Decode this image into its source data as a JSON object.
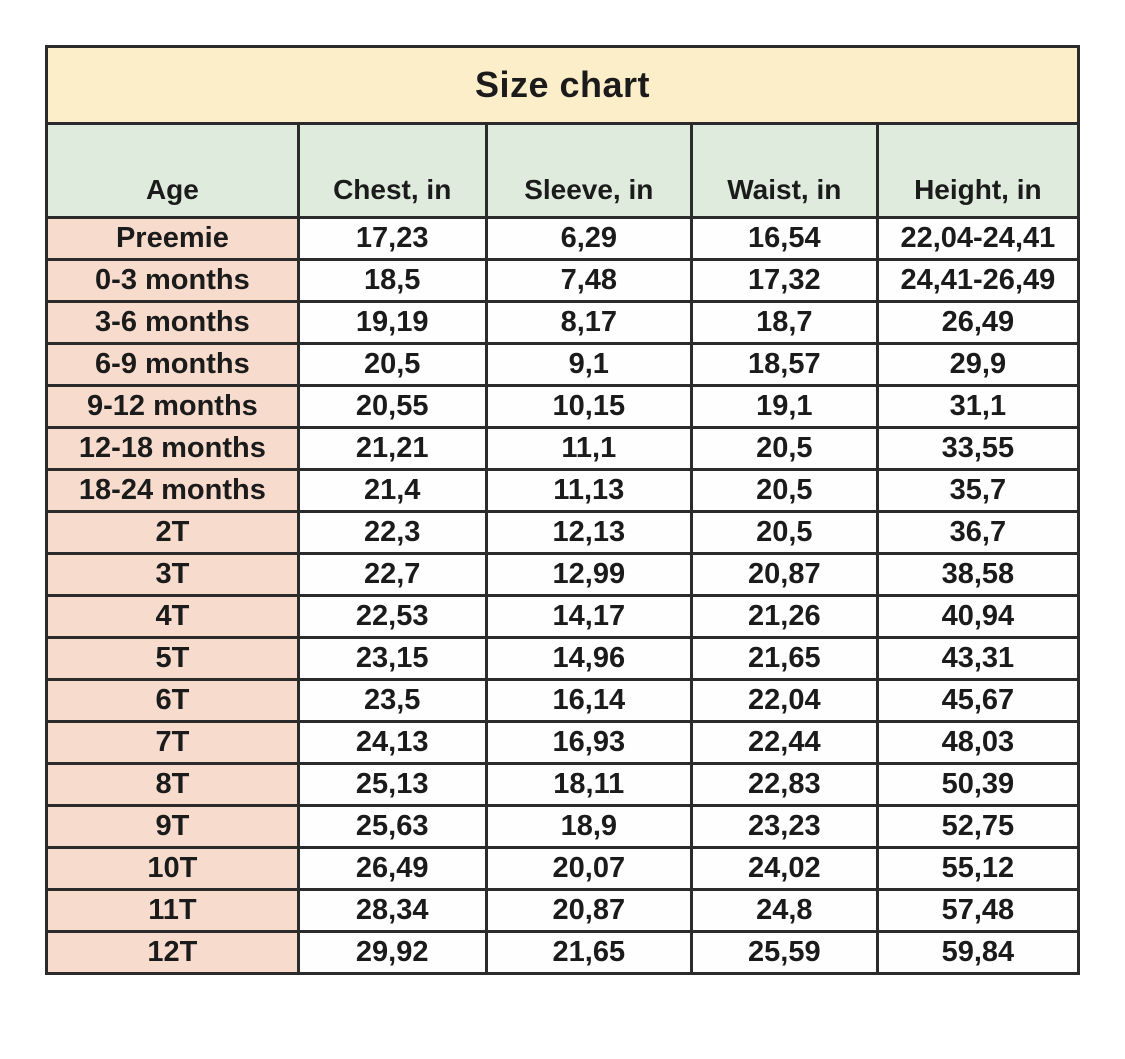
{
  "table": {
    "title": "Size chart",
    "columns": [
      "Age",
      "Chest, in",
      "Sleeve, in",
      "Waist, in",
      "Height, in"
    ],
    "rows": [
      [
        "Preemie",
        "17,23",
        "6,29",
        "16,54",
        "22,04-24,41"
      ],
      [
        "0-3 months",
        "18,5",
        "7,48",
        "17,32",
        "24,41-26,49"
      ],
      [
        "3-6 months",
        "19,19",
        "8,17",
        "18,7",
        "26,49"
      ],
      [
        "6-9 months",
        "20,5",
        "9,1",
        "18,57",
        "29,9"
      ],
      [
        "9-12 months",
        "20,55",
        "10,15",
        "19,1",
        "31,1"
      ],
      [
        "12-18 months",
        "21,21",
        "11,1",
        "20,5",
        "33,55"
      ],
      [
        "18-24 months",
        "21,4",
        "11,13",
        "20,5",
        "35,7"
      ],
      [
        "2T",
        "22,3",
        "12,13",
        "20,5",
        "36,7"
      ],
      [
        "3T",
        "22,7",
        "12,99",
        "20,87",
        "38,58"
      ],
      [
        "4T",
        "22,53",
        "14,17",
        "21,26",
        "40,94"
      ],
      [
        "5T",
        "23,15",
        "14,96",
        "21,65",
        "43,31"
      ],
      [
        "6T",
        "23,5",
        "16,14",
        "22,04",
        "45,67"
      ],
      [
        "7T",
        "24,13",
        "16,93",
        "22,44",
        "48,03"
      ],
      [
        "8T",
        "25,13",
        "18,11",
        "22,83",
        "50,39"
      ],
      [
        "9T",
        "25,63",
        "18,9",
        "23,23",
        "52,75"
      ],
      [
        "10T",
        "26,49",
        "20,07",
        "24,02",
        "55,12"
      ],
      [
        "11T",
        "28,34",
        "20,87",
        "24,8",
        "57,48"
      ],
      [
        "12T",
        "29,92",
        "21,65",
        "25,59",
        "59,84"
      ]
    ],
    "colors": {
      "title_bg": "#fbeec9",
      "header_bg": "#dfebdd",
      "age_column_bg": "#f7dccd",
      "cell_bg": "#fefefe",
      "border": "#2b2b2b",
      "text": "#1b1b1b"
    }
  },
  "chart_data": {
    "type": "table",
    "title": "Size chart",
    "columns": [
      "Age",
      "Chest, in",
      "Sleeve, in",
      "Waist, in",
      "Height, in"
    ],
    "decimal_separator": ",",
    "rows": [
      {
        "age": "Preemie",
        "chest_in": 17.23,
        "sleeve_in": 6.29,
        "waist_in": 16.54,
        "height_in": "22,04-24,41"
      },
      {
        "age": "0-3 months",
        "chest_in": 18.5,
        "sleeve_in": 7.48,
        "waist_in": 17.32,
        "height_in": "24,41-26,49"
      },
      {
        "age": "3-6 months",
        "chest_in": 19.19,
        "sleeve_in": 8.17,
        "waist_in": 18.7,
        "height_in": 26.49
      },
      {
        "age": "6-9 months",
        "chest_in": 20.5,
        "sleeve_in": 9.1,
        "waist_in": 18.57,
        "height_in": 29.9
      },
      {
        "age": "9-12 months",
        "chest_in": 20.55,
        "sleeve_in": 10.15,
        "waist_in": 19.1,
        "height_in": 31.1
      },
      {
        "age": "12-18 months",
        "chest_in": 21.21,
        "sleeve_in": 11.1,
        "waist_in": 20.5,
        "height_in": 33.55
      },
      {
        "age": "18-24 months",
        "chest_in": 21.4,
        "sleeve_in": 11.13,
        "waist_in": 20.5,
        "height_in": 35.7
      },
      {
        "age": "2T",
        "chest_in": 22.3,
        "sleeve_in": 12.13,
        "waist_in": 20.5,
        "height_in": 36.7
      },
      {
        "age": "3T",
        "chest_in": 22.7,
        "sleeve_in": 12.99,
        "waist_in": 20.87,
        "height_in": 38.58
      },
      {
        "age": "4T",
        "chest_in": 22.53,
        "sleeve_in": 14.17,
        "waist_in": 21.26,
        "height_in": 40.94
      },
      {
        "age": "5T",
        "chest_in": 23.15,
        "sleeve_in": 14.96,
        "waist_in": 21.65,
        "height_in": 43.31
      },
      {
        "age": "6T",
        "chest_in": 23.5,
        "sleeve_in": 16.14,
        "waist_in": 22.04,
        "height_in": 45.67
      },
      {
        "age": "7T",
        "chest_in": 24.13,
        "sleeve_in": 16.93,
        "waist_in": 22.44,
        "height_in": 48.03
      },
      {
        "age": "8T",
        "chest_in": 25.13,
        "sleeve_in": 18.11,
        "waist_in": 22.83,
        "height_in": 50.39
      },
      {
        "age": "9T",
        "chest_in": 25.63,
        "sleeve_in": 18.9,
        "waist_in": 23.23,
        "height_in": 52.75
      },
      {
        "age": "10T",
        "chest_in": 26.49,
        "sleeve_in": 20.07,
        "waist_in": 24.02,
        "height_in": 55.12
      },
      {
        "age": "11T",
        "chest_in": 28.34,
        "sleeve_in": 20.87,
        "waist_in": 24.8,
        "height_in": 57.48
      },
      {
        "age": "12T",
        "chest_in": 29.92,
        "sleeve_in": 21.65,
        "waist_in": 25.59,
        "height_in": 59.84
      }
    ]
  }
}
